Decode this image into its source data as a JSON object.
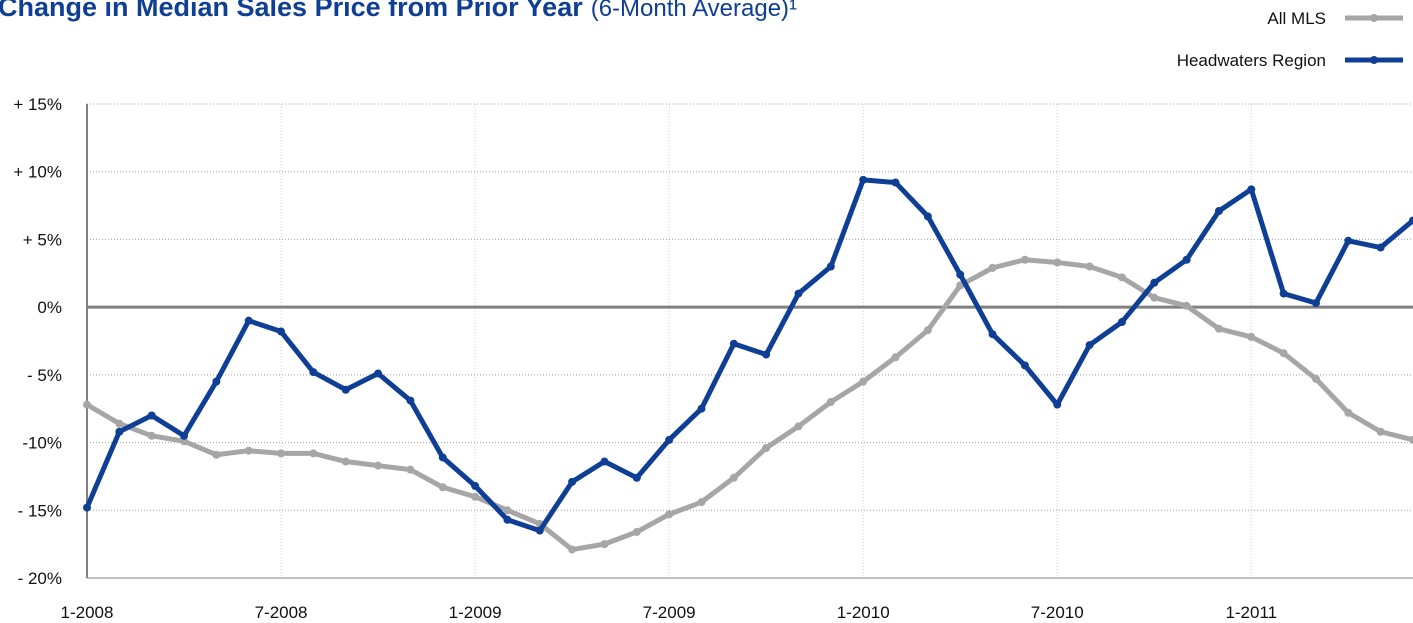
{
  "chart_data": {
    "type": "line",
    "title": "Change in Median Sales Price from Prior Year",
    "subtitle": "(6-Month Average)¹",
    "categories": [
      "1-2008",
      null,
      null,
      null,
      null,
      null,
      "7-2008",
      null,
      null,
      null,
      null,
      null,
      "1-2009",
      null,
      null,
      null,
      null,
      null,
      "7-2009",
      null,
      null,
      null,
      null,
      null,
      "1-2010",
      null,
      null,
      null,
      null,
      null,
      "7-2010",
      null,
      null,
      null,
      null,
      null,
      "1-2011",
      null,
      null,
      null,
      null,
      null
    ],
    "series": [
      {
        "name": "All MLS",
        "color": "#a6a6a6",
        "values": [
          -7.2,
          -8.6,
          -9.5,
          -9.9,
          -10.9,
          -10.6,
          -10.8,
          -10.8,
          -11.4,
          -11.7,
          -12.0,
          -13.3,
          -14.0,
          -15.0,
          -16.0,
          -17.9,
          -17.5,
          -16.6,
          -15.3,
          -14.4,
          -12.6,
          -10.4,
          -8.8,
          -7.0,
          -5.5,
          -3.7,
          -1.7,
          1.6,
          2.9,
          3.5,
          3.3,
          3.0,
          2.2,
          0.7,
          0.1,
          -1.6,
          -2.2,
          -3.4,
          -5.3,
          -7.8,
          -9.2,
          -9.8
        ]
      },
      {
        "name": "Headwaters Region",
        "color": "#0f3f94",
        "values": [
          -14.8,
          -9.2,
          -8.0,
          -9.5,
          -5.5,
          -1.0,
          -1.8,
          -4.8,
          -6.1,
          -4.9,
          -6.9,
          -11.1,
          -13.2,
          -15.7,
          -16.5,
          -12.9,
          -11.4,
          -12.6,
          -9.8,
          -7.5,
          -2.7,
          -3.5,
          1.0,
          3.0,
          9.4,
          9.2,
          6.7,
          2.4,
          -2.0,
          -4.3,
          -7.2,
          -2.8,
          -1.1,
          1.8,
          3.5,
          7.1,
          8.7,
          1.0,
          0.3,
          4.9,
          4.4,
          6.4
        ]
      }
    ],
    "ylim": [
      -20,
      15
    ],
    "yticks": [
      {
        "value": -20,
        "label": "- 20%"
      },
      {
        "value": -15,
        "label": "- 15%"
      },
      {
        "value": -10,
        "label": "-10%"
      },
      {
        "value": -5,
        "label": "- 5%"
      },
      {
        "value": 0,
        "label": "0%"
      },
      {
        "value": 5,
        "label": "+ 5%"
      },
      {
        "value": 10,
        "label": "+ 10%"
      },
      {
        "value": 15,
        "label": "+ 15%"
      }
    ],
    "grid": true,
    "legend": "top-right"
  }
}
